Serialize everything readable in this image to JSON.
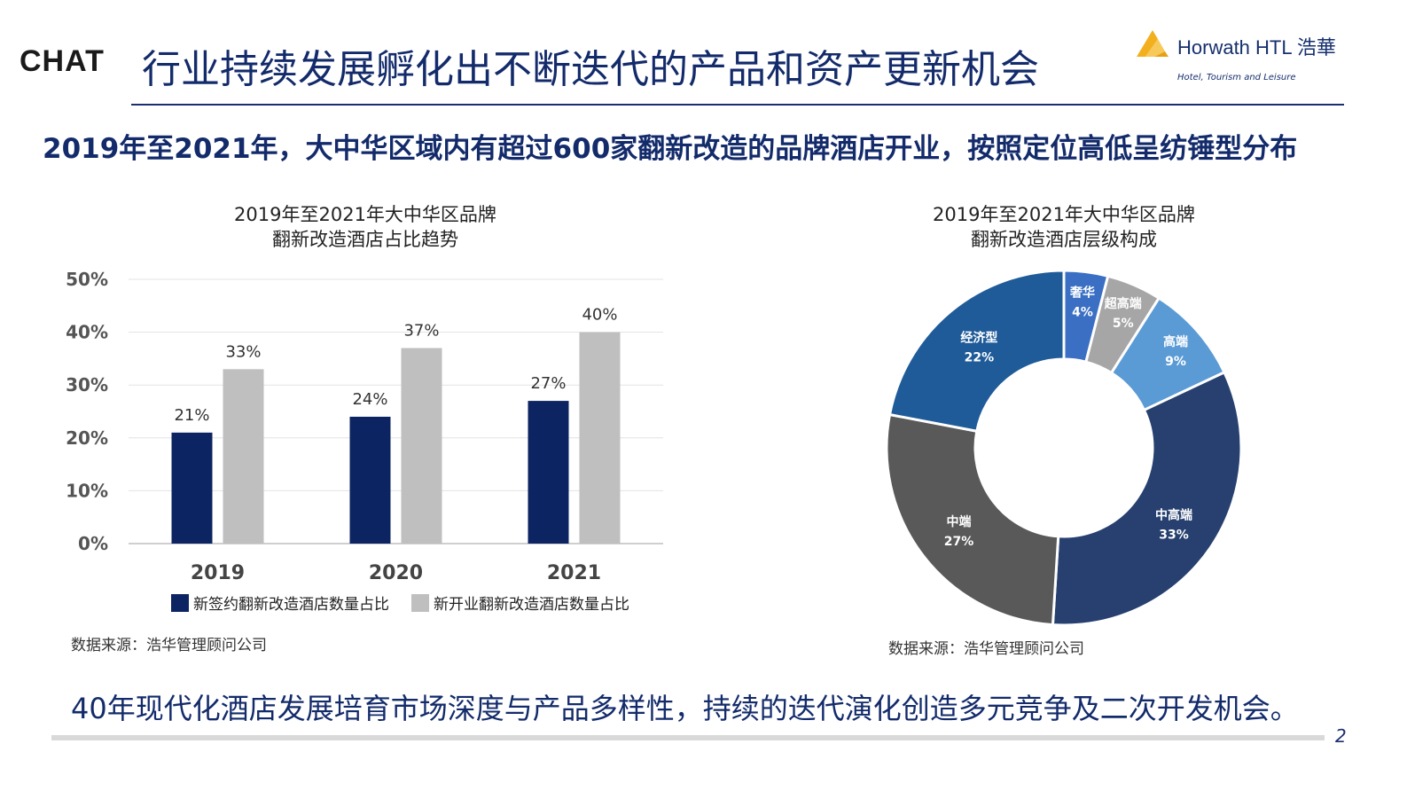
{
  "header": {
    "brand": "CHAT",
    "title": "行业持续发展孵化出不断迭代的产品和资产更新机会",
    "logo_name": "Horwath HTL 浩華",
    "logo_tagline": "Hotel, Tourism and Leisure"
  },
  "subtitle": "2019年至2021年，大中华区域内有超过600家翻新改造的品牌酒店开业，按照定位高低呈纺锤型分布",
  "colors": {
    "navy": "#0c2461",
    "light_gray": "#bfbfbf",
    "luxury": "#3a6fc4",
    "upper_upscale": "#a6a6a6",
    "upscale": "#5b9bd5",
    "upper_midscale": "#27406f",
    "midscale": "#595959",
    "economy": "#1f5b99"
  },
  "chart_data": [
    {
      "type": "bar",
      "title": "2019年至2021年大中华区品牌 翻新改造酒店占比趋势",
      "title_lines": [
        "2019年至2021年大中华区品牌",
        "翻新改造酒店占比趋势"
      ],
      "categories": [
        "2019",
        "2020",
        "2021"
      ],
      "series": [
        {
          "name": "新签约翻新改造酒店数量占比",
          "values": [
            21,
            24,
            27
          ],
          "labels": [
            "21%",
            "24%",
            "27%"
          ]
        },
        {
          "name": "新开业翻新改造酒店数量占比",
          "values": [
            33,
            37,
            40
          ],
          "labels": [
            "33%",
            "37%",
            "40%"
          ]
        }
      ],
      "y_ticks": [
        "0%",
        "10%",
        "20%",
        "30%",
        "40%",
        "50%"
      ],
      "ylim": [
        0,
        50
      ],
      "grid": true,
      "legend": "bottom",
      "source": "数据来源：浩华管理顾问公司"
    },
    {
      "type": "pie",
      "variant": "donut",
      "title": "2019年至2021年大中华区品牌 翻新改造酒店层级构成",
      "title_lines": [
        "2019年至2021年大中华区品牌",
        "翻新改造酒店层级构成"
      ],
      "slices": [
        {
          "label": "奢华",
          "value": 4,
          "text": "4%"
        },
        {
          "label": "超高端",
          "value": 5,
          "text": "5%"
        },
        {
          "label": "高端",
          "value": 9,
          "text": "9%"
        },
        {
          "label": "中高端",
          "value": 33,
          "text": "33%"
        },
        {
          "label": "中端",
          "value": 27,
          "text": "27%"
        },
        {
          "label": "经济型",
          "value": 22,
          "text": "22%"
        }
      ],
      "source": "数据来源：浩华管理顾问公司"
    }
  ],
  "footer": {
    "text": "40年现代化酒店发展培育市场深度与产品多样性，持续的迭代演化创造多元竞争及二次开发机会。",
    "page_number": "2"
  }
}
